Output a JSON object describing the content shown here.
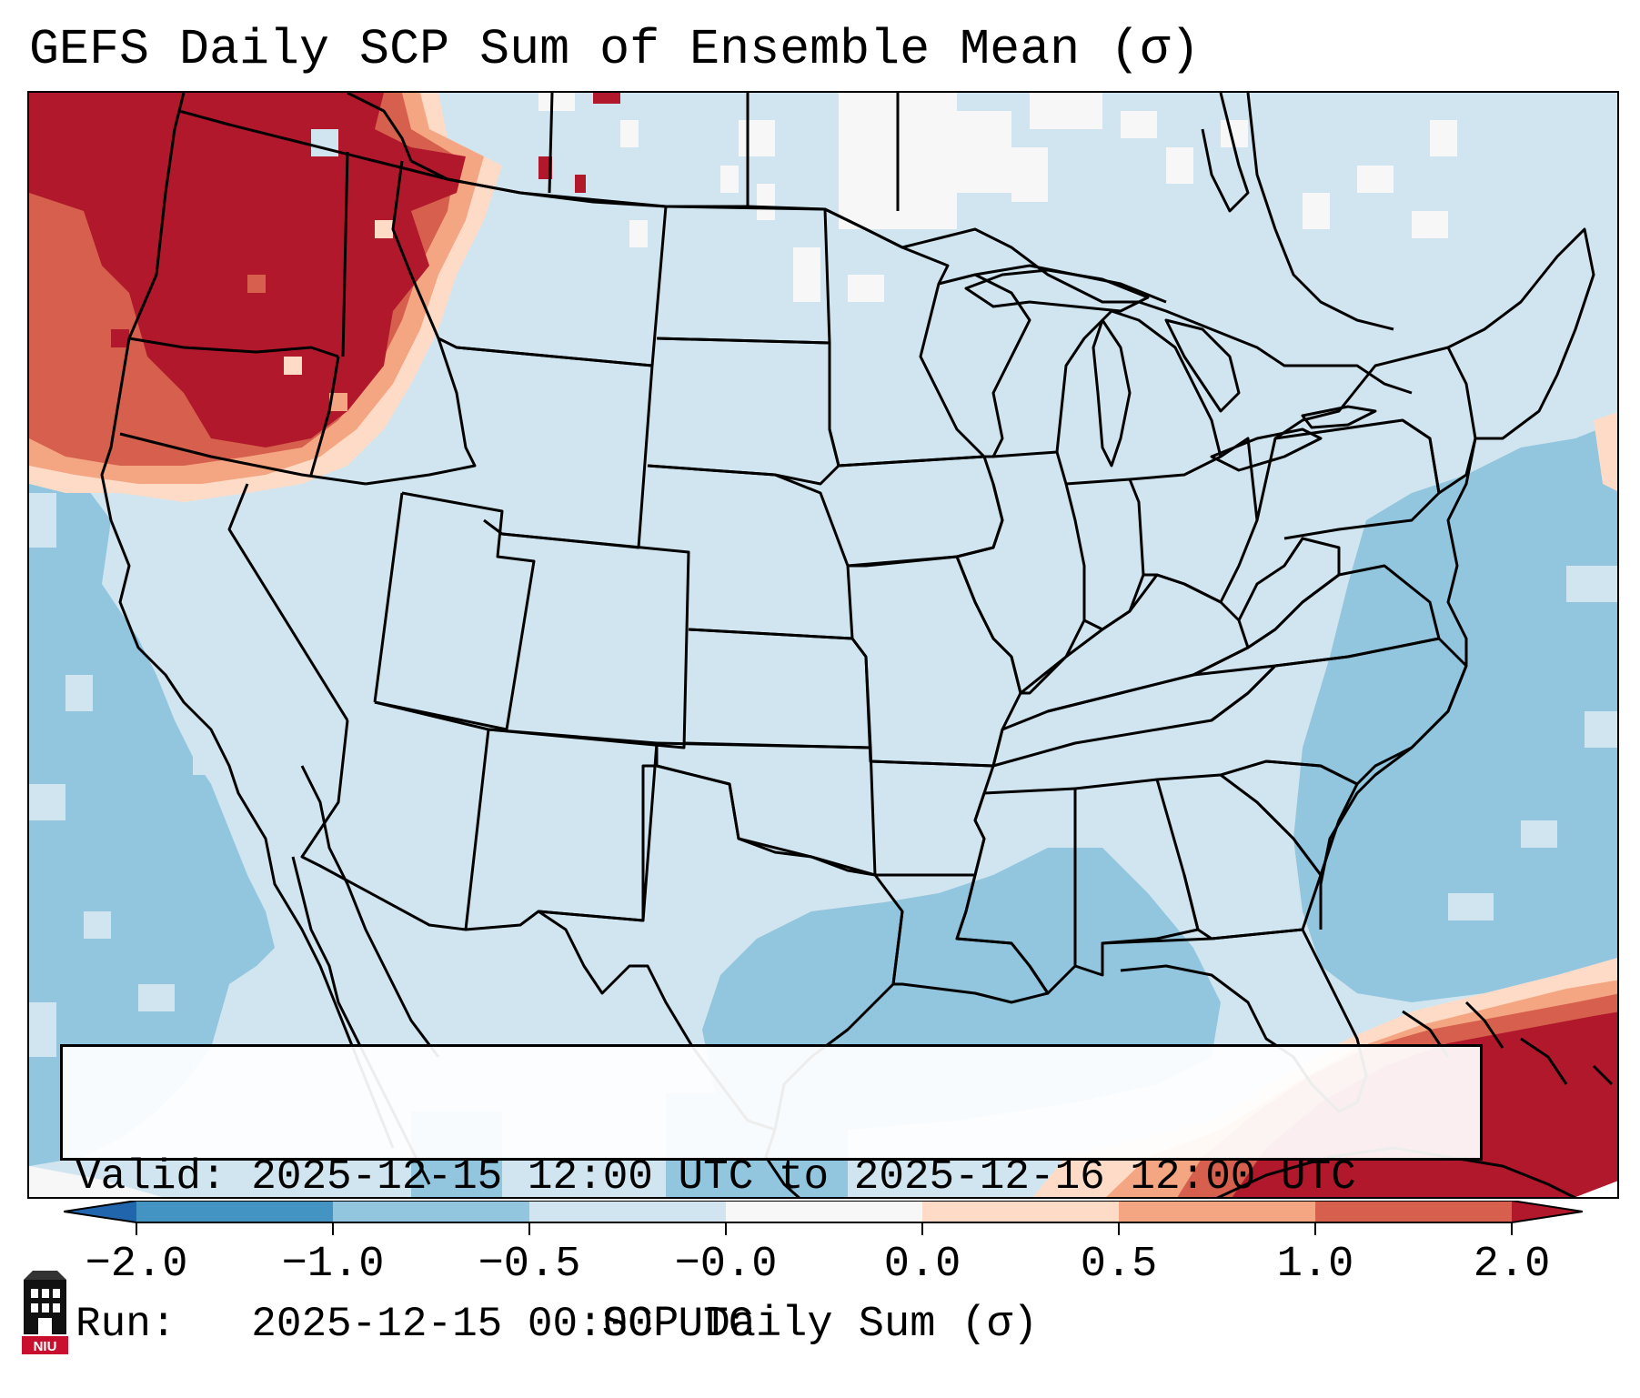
{
  "title": "GEFS Daily SCP Sum of Ensemble Mean (σ)",
  "info_box": {
    "valid_line": "Valid: 2025-12-15 12:00 UTC to 2025-12-16 12:00 UTC",
    "run_line": "Run:   2025-12-15 00:00 UTC"
  },
  "colorbar": {
    "label": "SCP Daily Sum (σ)",
    "ticks": [
      "−2.0",
      "−1.0",
      "−0.5",
      "−0.0",
      "0.0",
      "0.5",
      "1.0",
      "2.0"
    ],
    "bins": [
      {
        "range": "< -2.0",
        "color": "#2166ac"
      },
      {
        "range": "-2.0 to -1.0",
        "color": "#4393c3"
      },
      {
        "range": "-1.0 to -0.5",
        "color": "#92c5de"
      },
      {
        "range": "-0.5 to -0.0",
        "color": "#d1e5f0"
      },
      {
        "range": "-0.0 to 0.0",
        "color": "#f7f7f7"
      },
      {
        "range": "0.0 to 0.5",
        "color": "#fddbc7"
      },
      {
        "range": "0.5 to 1.0",
        "color": "#f4a582"
      },
      {
        "range": "1.0 to 2.0",
        "color": "#d6604d"
      },
      {
        "range": "> 2.0",
        "color": "#b2182b"
      }
    ]
  },
  "map_regions": [
    {
      "region": "Pacific Northwest",
      "category": "> 2.0"
    },
    {
      "region": "Northern Rockies",
      "category": "1.0 to 2.0"
    },
    {
      "region": "Caribbean / southwest Atlantic",
      "category": "> 2.0"
    },
    {
      "region": "Gulf of Mexico",
      "category": "-1.0 to -0.5"
    },
    {
      "region": "Western Atlantic",
      "category": "-1.0 to -0.5"
    },
    {
      "region": "Eastern Pacific",
      "category": "-1.0 to -0.5"
    },
    {
      "region": "Continental US",
      "category": "-0.5 to -0.0"
    }
  ],
  "logo": {
    "text": "NIU",
    "icon": "niu-building-logo"
  }
}
